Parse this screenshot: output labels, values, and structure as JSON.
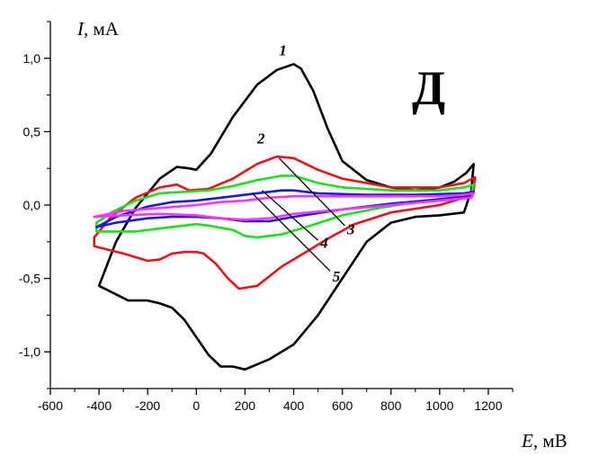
{
  "chart_data": {
    "type": "line",
    "panel_label": "Д",
    "ylabel": {
      "var": "I",
      "unit": ", мА"
    },
    "xlabel": {
      "var": "E",
      "unit": ", мВ"
    },
    "xlim": [
      -600,
      1300
    ],
    "ylim": [
      -1.25,
      1.25
    ],
    "x_ticks": [
      -600,
      -400,
      -200,
      0,
      200,
      400,
      600,
      800,
      1000,
      1200
    ],
    "x_tick_labels": [
      "-600",
      "-400",
      "-200",
      "0",
      "200",
      "400",
      "600",
      "800",
      "1000",
      "1200"
    ],
    "y_ticks": [
      1.0,
      0.5,
      0.0,
      -0.5,
      -1.0
    ],
    "y_tick_labels": [
      "1,0",
      "0,5",
      "0,0",
      "-0,5",
      "-1,0"
    ],
    "grid": false,
    "series": [
      {
        "name": "1",
        "color": "#000000",
        "x": [
          -400,
          -330,
          -250,
          -150,
          -80,
          -30,
          0,
          60,
          150,
          250,
          330,
          400,
          430,
          480,
          540,
          600,
          700,
          800,
          900,
          1000,
          1060,
          1110,
          1140,
          1130,
          1100,
          1000,
          900,
          800,
          700,
          600,
          500,
          400,
          300,
          200,
          150,
          100,
          50,
          0,
          -50,
          -100,
          -150,
          -200,
          -280,
          -340,
          -400
        ],
        "y": [
          -0.55,
          -0.25,
          -0.02,
          0.18,
          0.26,
          0.25,
          0.24,
          0.35,
          0.6,
          0.82,
          0.92,
          0.96,
          0.93,
          0.78,
          0.52,
          0.3,
          0.17,
          0.12,
          0.1,
          0.12,
          0.16,
          0.22,
          0.28,
          0.1,
          -0.05,
          -0.07,
          -0.08,
          -0.12,
          -0.25,
          -0.5,
          -0.75,
          -0.95,
          -1.05,
          -1.12,
          -1.1,
          -1.1,
          -1.02,
          -0.9,
          -0.78,
          -0.7,
          -0.67,
          -0.65,
          -0.65,
          -0.6,
          -0.55
        ]
      },
      {
        "name": "2",
        "color": "#e8141c",
        "x": [
          -420,
          -350,
          -250,
          -150,
          -80,
          -30,
          50,
          150,
          250,
          330,
          400,
          500,
          600,
          800,
          1000,
          1100,
          1145,
          1140,
          1100,
          1000,
          800,
          650,
          550,
          450,
          350,
          250,
          175,
          130,
          80,
          30,
          0,
          -50,
          -100,
          -150,
          -200,
          -300,
          -420
        ],
        "y": [
          -0.22,
          -0.08,
          0.05,
          0.12,
          0.14,
          0.1,
          0.11,
          0.18,
          0.28,
          0.33,
          0.32,
          0.24,
          0.18,
          0.12,
          0.12,
          0.15,
          0.19,
          0.1,
          0.05,
          0.0,
          -0.05,
          -0.13,
          -0.22,
          -0.32,
          -0.42,
          -0.55,
          -0.57,
          -0.5,
          -0.4,
          -0.33,
          -0.32,
          -0.32,
          -0.33,
          -0.37,
          -0.38,
          -0.33,
          -0.28
        ]
      },
      {
        "name": "3",
        "color": "#1fe01f",
        "x": [
          -410,
          -350,
          -250,
          -150,
          -50,
          50,
          150,
          250,
          350,
          400,
          500,
          600,
          800,
          1000,
          1100,
          1140,
          1130,
          1050,
          900,
          750,
          600,
          450,
          350,
          250,
          200,
          150,
          50,
          0,
          -50,
          -150,
          -250,
          -350,
          -410
        ],
        "y": [
          -0.12,
          -0.05,
          0.03,
          0.08,
          0.09,
          0.1,
          0.13,
          0.17,
          0.2,
          0.2,
          0.15,
          0.12,
          0.1,
          0.1,
          0.12,
          0.14,
          0.08,
          0.05,
          0.02,
          -0.02,
          -0.07,
          -0.15,
          -0.2,
          -0.22,
          -0.21,
          -0.17,
          -0.14,
          -0.13,
          -0.14,
          -0.16,
          -0.18,
          -0.18,
          -0.18
        ]
      },
      {
        "name": "4",
        "color": "#1a1ae6",
        "x": [
          -410,
          -330,
          -200,
          -100,
          0,
          100,
          200,
          300,
          350,
          400,
          500,
          700,
          900,
          1100,
          1140,
          1130,
          1000,
          800,
          600,
          400,
          300,
          200,
          100,
          0,
          -100,
          -200,
          -330,
          -410
        ],
        "y": [
          -0.15,
          -0.08,
          -0.01,
          0.02,
          0.03,
          0.05,
          0.07,
          0.09,
          0.1,
          0.1,
          0.08,
          0.07,
          0.07,
          0.08,
          0.09,
          0.06,
          0.04,
          0.01,
          -0.03,
          -0.08,
          -0.11,
          -0.11,
          -0.09,
          -0.08,
          -0.08,
          -0.09,
          -0.12,
          -0.15
        ]
      },
      {
        "name": "5",
        "color": "#ff33ff",
        "x": [
          -420,
          -300,
          -150,
          0,
          100,
          200,
          300,
          400,
          600,
          800,
          1000,
          1100,
          1140,
          1130,
          1000,
          800,
          600,
          400,
          300,
          200,
          100,
          0,
          -150,
          -300,
          -420
        ],
        "y": [
          -0.08,
          -0.04,
          -0.02,
          0.0,
          0.02,
          0.03,
          0.05,
          0.06,
          0.06,
          0.06,
          0.06,
          0.07,
          0.08,
          0.05,
          0.03,
          0.0,
          -0.03,
          -0.06,
          -0.09,
          -0.1,
          -0.09,
          -0.07,
          -0.06,
          -0.07,
          -0.08
        ]
      }
    ],
    "annotations": [
      {
        "text": "1",
        "x": 340,
        "y": 1.02
      },
      {
        "text": "2",
        "x": 250,
        "y": 0.42
      },
      {
        "text": "3",
        "x": 620,
        "y": -0.2
      },
      {
        "text": "4",
        "x": 510,
        "y": -0.29
      },
      {
        "text": "5",
        "x": 560,
        "y": -0.52
      }
    ],
    "leader_lines": [
      {
        "from": [
          340,
          0.32
        ],
        "to": [
          610,
          -0.14
        ]
      },
      {
        "from": [
          270,
          0.1
        ],
        "to": [
          500,
          -0.24
        ]
      },
      {
        "from": [
          230,
          0.08
        ],
        "to": [
          550,
          -0.45
        ]
      }
    ]
  }
}
